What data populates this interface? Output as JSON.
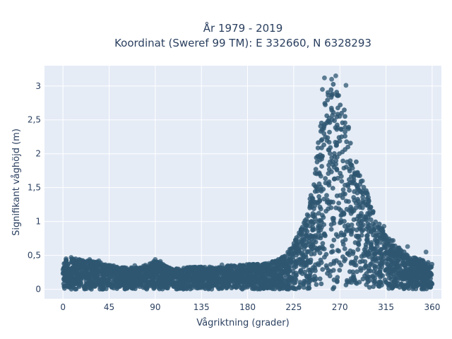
{
  "chart_data": {
    "type": "scatter",
    "title": "År 1979 - 2019",
    "subtitle": "Koordinat (Sweref 99 TM): E 332660, N 6328293",
    "xlabel": "Vågriktning (grader)",
    "ylabel": "Signifikant våghöjd (m)",
    "xlim": [
      -18,
      369
    ],
    "ylim": [
      -0.14,
      3.3
    ],
    "x_ticks": [
      0,
      45,
      90,
      135,
      180,
      225,
      270,
      315,
      360
    ],
    "x_tick_labels": [
      "0",
      "45",
      "90",
      "135",
      "180",
      "225",
      "270",
      "315",
      "360"
    ],
    "y_ticks": [
      0,
      0.5,
      1,
      1.5,
      2,
      2.5,
      3
    ],
    "y_tick_labels": [
      "0",
      "0,5",
      "1",
      "1,5",
      "2",
      "2,5",
      "3"
    ],
    "grid": true,
    "marker_color": "#2e5771",
    "plot_background": "#e5ecf6",
    "series": [
      {
        "name": "",
        "envelope": [
          {
            "x": 0,
            "y": 0.46
          },
          {
            "x": 10,
            "y": 0.47
          },
          {
            "x": 20,
            "y": 0.44
          },
          {
            "x": 30,
            "y": 0.44
          },
          {
            "x": 45,
            "y": 0.37
          },
          {
            "x": 60,
            "y": 0.33
          },
          {
            "x": 75,
            "y": 0.33
          },
          {
            "x": 90,
            "y": 0.44
          },
          {
            "x": 105,
            "y": 0.32
          },
          {
            "x": 120,
            "y": 0.33
          },
          {
            "x": 135,
            "y": 0.35
          },
          {
            "x": 150,
            "y": 0.33
          },
          {
            "x": 165,
            "y": 0.37
          },
          {
            "x": 180,
            "y": 0.38
          },
          {
            "x": 195,
            "y": 0.38
          },
          {
            "x": 210,
            "y": 0.45
          },
          {
            "x": 220,
            "y": 0.58
          },
          {
            "x": 230,
            "y": 0.85
          },
          {
            "x": 240,
            "y": 1.3
          },
          {
            "x": 245,
            "y": 1.75
          },
          {
            "x": 250,
            "y": 2.4
          },
          {
            "x": 255,
            "y": 2.95
          },
          {
            "x": 260,
            "y": 3.05
          },
          {
            "x": 265,
            "y": 3.15
          },
          {
            "x": 270,
            "y": 3.0
          },
          {
            "x": 275,
            "y": 2.7
          },
          {
            "x": 280,
            "y": 2.45
          },
          {
            "x": 285,
            "y": 2.0
          },
          {
            "x": 290,
            "y": 1.7
          },
          {
            "x": 295,
            "y": 1.55
          },
          {
            "x": 300,
            "y": 1.3
          },
          {
            "x": 305,
            "y": 1.1
          },
          {
            "x": 310,
            "y": 0.95
          },
          {
            "x": 320,
            "y": 0.75
          },
          {
            "x": 330,
            "y": 0.6
          },
          {
            "x": 340,
            "y": 0.5
          },
          {
            "x": 350,
            "y": 0.45
          },
          {
            "x": 360,
            "y": 0.4
          }
        ],
        "outliers": [
          {
            "x": 255,
            "y": 3.12
          },
          {
            "x": 262,
            "y": 3.1
          },
          {
            "x": 266,
            "y": 3.15
          },
          {
            "x": 276,
            "y": 3.01
          },
          {
            "x": 253,
            "y": 2.95
          },
          {
            "x": 292,
            "y": 1.6
          },
          {
            "x": 297,
            "y": 1.4
          },
          {
            "x": 313,
            "y": 0.93
          },
          {
            "x": 322,
            "y": 0.72
          },
          {
            "x": 336,
            "y": 0.63
          },
          {
            "x": 354,
            "y": 0.55
          },
          {
            "x": 90,
            "y": 0.44
          },
          {
            "x": 95,
            "y": 0.41
          },
          {
            "x": 8,
            "y": 0.47
          },
          {
            "x": 3,
            "y": 0.45
          },
          {
            "x": 26,
            "y": 0.44
          },
          {
            "x": 35,
            "y": 0.42
          },
          {
            "x": 70,
            "y": 0.35
          },
          {
            "x": 155,
            "y": 0.36
          },
          {
            "x": 185,
            "y": 0.36
          },
          {
            "x": 198,
            "y": 0.38
          },
          {
            "x": 210,
            "y": 0.44
          }
        ]
      }
    ]
  }
}
